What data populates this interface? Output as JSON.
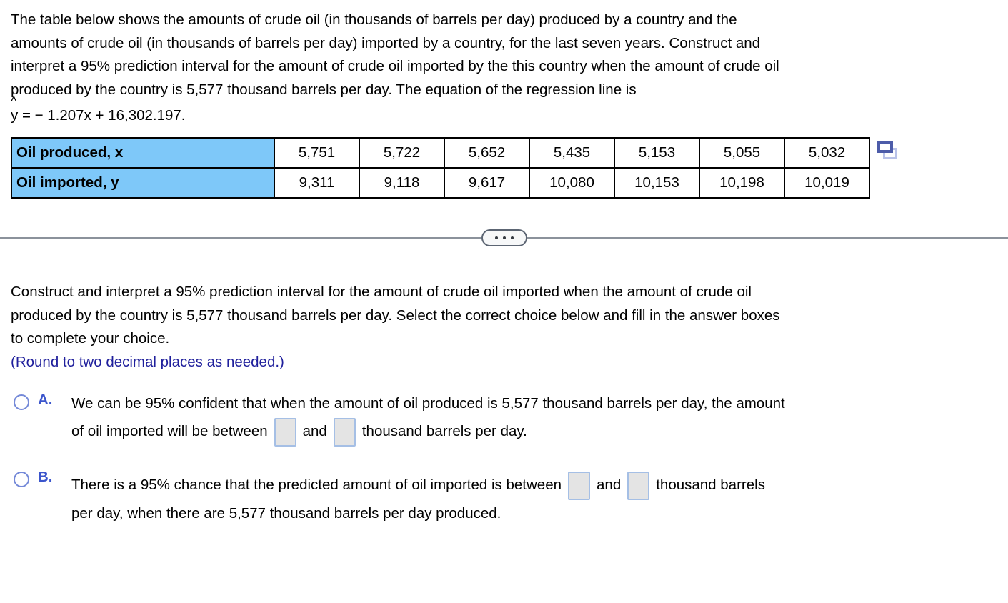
{
  "intro": {
    "lines": [
      "The table below shows the amounts of crude oil (in thousands of barrels per day) produced by a country and the",
      "amounts of crude oil (in thousands of barrels per day) imported by a country, for the last seven years. Construct and",
      "interpret a 95% prediction interval for the amount of crude oil imported by the this country when the amount of crude oil",
      "produced by the country is 5,577 thousand barrels per day. The equation of the regression line is"
    ],
    "equation": {
      "hat": "^",
      "variable": "y",
      "rest": " = − 1.207x + 16,302.197."
    }
  },
  "table": {
    "rows": [
      {
        "label": "Oil produced, x",
        "values": [
          "5,751",
          "5,722",
          "5,652",
          "5,435",
          "5,153",
          "5,055",
          "5,032"
        ]
      },
      {
        "label": "Oil imported, y",
        "values": [
          "9,311",
          "9,118",
          "9,617",
          "10,080",
          "10,153",
          "10,198",
          "10,019"
        ]
      }
    ]
  },
  "icons": {
    "copy_data": "copy-data-icon (overlapping rectangles)",
    "ellipsis_button": "three-dots"
  },
  "question": {
    "lines": [
      "Construct and interpret a 95% prediction interval for the amount of crude oil imported when the amount of crude oil",
      "produced by the country is 5,577 thousand barrels per day. Select the correct choice below and fill in the answer boxes",
      "to complete your choice."
    ],
    "note": "(Round to two decimal places as needed.)"
  },
  "options": [
    {
      "letter": "A.",
      "line1": "We can be 95% confident that when the amount of oil produced is 5,577 thousand barrels per day, the amount",
      "line2_before": "of oil imported will be between",
      "conjunction": "and",
      "line2_after": "thousand barrels per day.",
      "box1_value": "",
      "box2_value": ""
    },
    {
      "letter": "B.",
      "line1_before": "There is a 95% chance that the predicted amount of oil imported is between",
      "conjunction": "and",
      "line1_after": "thousand barrels",
      "line2": "per day, when there are 5,577 thousand barrels per day produced.",
      "box1_value": "",
      "box2_value": ""
    }
  ],
  "colors": {
    "table_header_bg": "#7ec8f9",
    "note_blue": "#1f1f9c",
    "option_letter_blue": "#3b55cc",
    "radio_ring_blue": "#7489d8",
    "answer_box_fill": "#e4e4e4",
    "answer_box_border": "#a5bfe5",
    "divider_gray": "#8b929b",
    "copy_icon_dark_blue": "#4d5ca9",
    "copy_icon_light_blue": "#b9c2e8"
  }
}
